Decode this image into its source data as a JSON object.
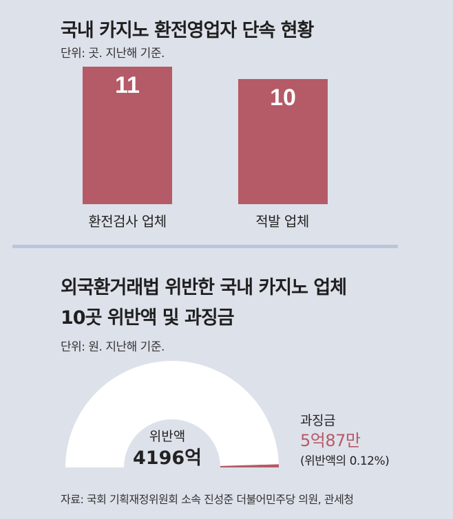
{
  "chart_data": [
    {
      "type": "bar",
      "title": "국내 카지노 환전영업자 단속 현황",
      "subtitle": "단위: 곳. 지난해 기준.",
      "categories": [
        "환전검사 업체",
        "적발 업체"
      ],
      "values": [
        11,
        10
      ],
      "data_labels": [
        "11",
        "10"
      ],
      "ylim": [
        0,
        11
      ]
    },
    {
      "type": "pie",
      "title_lines": [
        "외국환거래법 위반한 국내 카지노 업체",
        "10곳 위반액 및 과징금"
      ],
      "subtitle": "단위: 원. 지난해 기준.",
      "slices": [
        {
          "label": "위반액",
          "value_text": "4196억",
          "value": 419600000000
        },
        {
          "label": "과징금",
          "value_text": "5억87만",
          "value": 500870000,
          "share_text": "(위반액의 0.12%)",
          "share_percent": 0.12
        }
      ]
    }
  ],
  "colors": {
    "bar": "#b55a67",
    "accent": "#b55a67",
    "gauge": "#ffffff",
    "background": "#dde1ea",
    "divider": "#b8c7db"
  },
  "source": "자료: 국회 기획재정위원회 소속 진성준 더불어민주당 의원, 관세청"
}
